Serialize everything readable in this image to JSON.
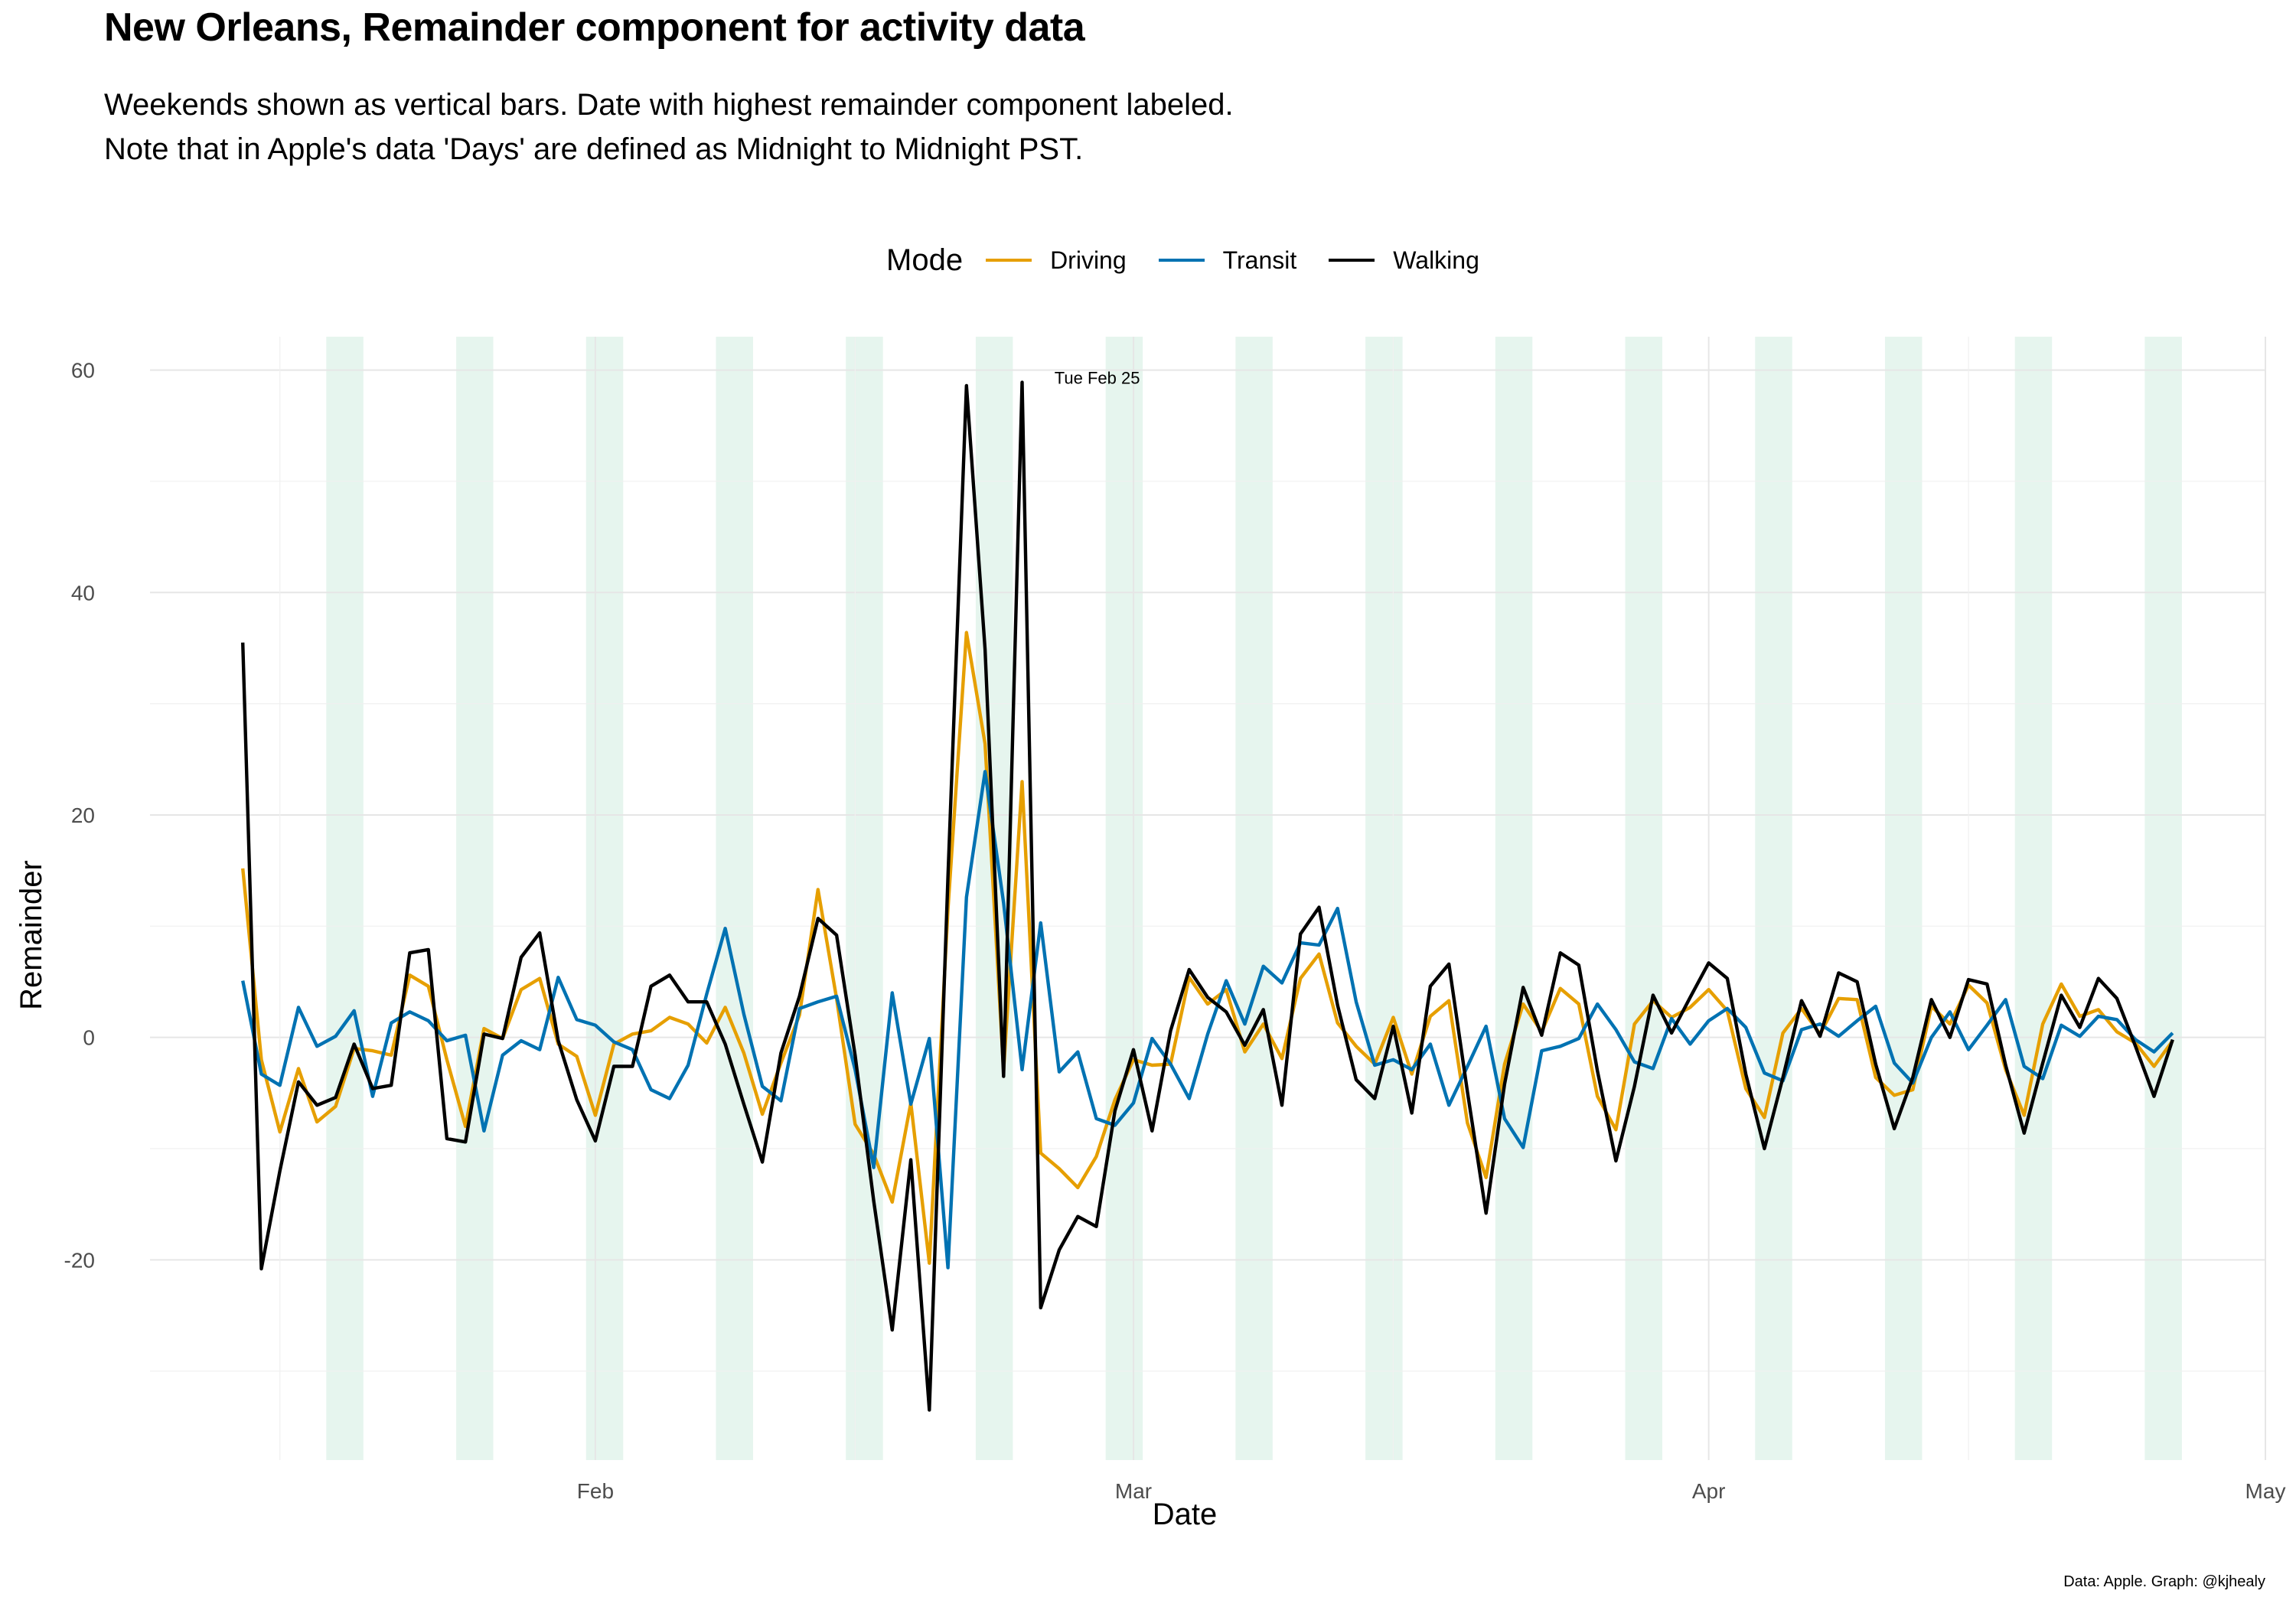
{
  "title": "New Orleans, Remainder component for activity data",
  "subtitle_lines": [
    "Weekends shown as vertical bars. Date with highest remainder component labeled.",
    "Note that in Apple's data 'Days' are defined as Midnight to Midnight PST."
  ],
  "caption": "Data: Apple. Graph: @kjhealy",
  "legend": {
    "title": "Mode",
    "placement": "top",
    "items": [
      {
        "label": "Driving",
        "color": "#E69F00"
      },
      {
        "label": "Transit",
        "color": "#0072B2"
      },
      {
        "label": "Walking",
        "color": "#000000"
      }
    ]
  },
  "chart_data": {
    "type": "line",
    "title": "New Orleans, Remainder component for activity data",
    "xlabel": "Date",
    "ylabel": "Remainder",
    "x_start_date": "2020-01-13",
    "xlim_dates": [
      "2020-01-08",
      "2020-05-01"
    ],
    "ylim": [
      -38,
      63
    ],
    "y_ticks": [
      -20,
      0,
      20,
      40,
      60
    ],
    "x_ticks": [
      {
        "date": "2020-02-01",
        "label": "Feb"
      },
      {
        "date": "2020-03-01",
        "label": "Mar"
      },
      {
        "date": "2020-04-01",
        "label": "Apr"
      },
      {
        "date": "2020-05-01",
        "label": "May"
      }
    ],
    "grid": true,
    "weekend_shading_color": "#D5EEE3",
    "weekend_start_dates": [
      "2020-01-18",
      "2020-01-25",
      "2020-02-01",
      "2020-02-08",
      "2020-02-15",
      "2020-02-22",
      "2020-02-29",
      "2020-03-07",
      "2020-03-14",
      "2020-03-21",
      "2020-03-28",
      "2020-04-04",
      "2020-04-11",
      "2020-04-18",
      "2020-04-25"
    ],
    "annotation": {
      "date": "2020-02-25",
      "value": 58.9,
      "label": "Tue Feb 25"
    },
    "series": [
      {
        "name": "Driving",
        "color": "#E69F00",
        "values": [
          15.2,
          -2.0,
          -8.5,
          -2.8,
          -7.6,
          -6.2,
          -1.0,
          -1.2,
          -1.6,
          5.6,
          4.6,
          -2.0,
          -8.0,
          0.8,
          -0.1,
          4.3,
          5.3,
          -0.6,
          -1.7,
          -7.0,
          -0.6,
          0.3,
          0.6,
          1.8,
          1.2,
          -0.5,
          2.7,
          -1.4,
          -6.9,
          -2.3,
          2.0,
          13.3,
          3.5,
          -7.8,
          -10.5,
          -14.8,
          -5.9,
          -20.3,
          11.5,
          36.4,
          26.4,
          -3.0,
          23.0,
          -10.4,
          -11.8,
          -13.5,
          -10.7,
          -5.6,
          -2.0,
          -2.5,
          -2.4,
          5.4,
          3.0,
          4.3,
          -1.3,
          1.2,
          -1.9,
          5.3,
          7.5,
          1.3,
          -0.8,
          -2.4,
          1.8,
          -3.3,
          1.9,
          3.3,
          -7.7,
          -12.6,
          -2.4,
          3.0,
          0.5,
          4.4,
          3.0,
          -5.3,
          -8.3,
          1.2,
          3.3,
          1.8,
          2.7,
          4.3,
          2.4,
          -4.6,
          -7.2,
          0.4,
          2.6,
          0.3,
          3.5,
          3.4,
          -3.6,
          -5.2,
          -4.7,
          2.8,
          1.2,
          4.7,
          3.1,
          -2.9,
          -7.0,
          1.2,
          4.8,
          1.9,
          2.5,
          0.5,
          -0.5,
          -2.6,
          -0.3
        ]
      },
      {
        "name": "Transit",
        "color": "#0072B2",
        "values": [
          5.1,
          -3.3,
          -4.3,
          2.7,
          -0.8,
          0.1,
          2.4,
          -5.3,
          1.3,
          2.3,
          1.5,
          -0.3,
          0.2,
          -8.4,
          -1.6,
          -0.3,
          -1.1,
          5.4,
          1.6,
          1.1,
          -0.4,
          -1.1,
          -4.7,
          -5.5,
          -2.5,
          3.9,
          9.8,
          2.1,
          -4.4,
          -5.7,
          2.6,
          3.2,
          3.7,
          -2.9,
          -11.7,
          4.0,
          -6.0,
          -0.1,
          -20.7,
          12.6,
          23.9,
          12.1,
          -2.9,
          10.3,
          -3.1,
          -1.3,
          -7.3,
          -7.9,
          -5.9,
          -0.1,
          -2.4,
          -5.5,
          0.3,
          5.1,
          1.2,
          6.4,
          4.9,
          8.5,
          8.3,
          11.6,
          3.2,
          -2.5,
          -2.0,
          -2.9,
          -0.6,
          -6.1,
          -2.6,
          1.0,
          -7.3,
          -9.9,
          -1.2,
          -0.8,
          -0.1,
          3.0,
          0.7,
          -2.2,
          -2.8,
          1.7,
          -0.6,
          1.5,
          2.6,
          0.9,
          -3.2,
          -3.9,
          0.7,
          1.2,
          0.1,
          1.5,
          2.8,
          -2.3,
          -4.1,
          0.0,
          2.3,
          -1.1,
          1.1,
          3.4,
          -2.6,
          -3.7,
          1.1,
          0.1,
          1.9,
          1.6,
          -0.2,
          -1.3,
          0.4
        ]
      },
      {
        "name": "Walking",
        "color": "#000000",
        "values": [
          35.5,
          -20.8,
          -12.0,
          -4.0,
          -6.1,
          -5.4,
          -0.6,
          -4.6,
          -4.3,
          7.6,
          7.9,
          -9.1,
          -9.4,
          0.3,
          -0.1,
          7.2,
          9.4,
          -0.3,
          -5.6,
          -9.3,
          -2.6,
          -2.6,
          4.6,
          5.6,
          3.2,
          3.2,
          -0.6,
          -6.0,
          -11.2,
          -1.4,
          3.7,
          10.7,
          9.2,
          -1.6,
          -14.7,
          -26.3,
          -11.0,
          -33.5,
          14.4,
          58.6,
          34.9,
          -3.5,
          58.9,
          -24.3,
          -19.1,
          -16.1,
          -17.0,
          -6.6,
          -1.1,
          -8.4,
          0.6,
          6.1,
          3.6,
          2.3,
          -0.7,
          2.5,
          -6.1,
          9.3,
          11.7,
          2.9,
          -3.8,
          -5.5,
          1.0,
          -6.8,
          4.6,
          6.6,
          -4.9,
          -15.8,
          -4.2,
          4.5,
          0.2,
          7.6,
          6.5,
          -3.0,
          -11.1,
          -4.4,
          3.8,
          0.4,
          3.6,
          6.7,
          5.3,
          -3.3,
          -10.0,
          -3.6,
          3.3,
          0.1,
          5.8,
          5.0,
          -2.4,
          -8.2,
          -3.6,
          3.4,
          0.0,
          5.2,
          4.8,
          -2.5,
          -8.6,
          -2.3,
          3.8,
          0.9,
          5.3,
          3.5,
          -0.8,
          -5.3,
          -0.2
        ]
      }
    ]
  }
}
